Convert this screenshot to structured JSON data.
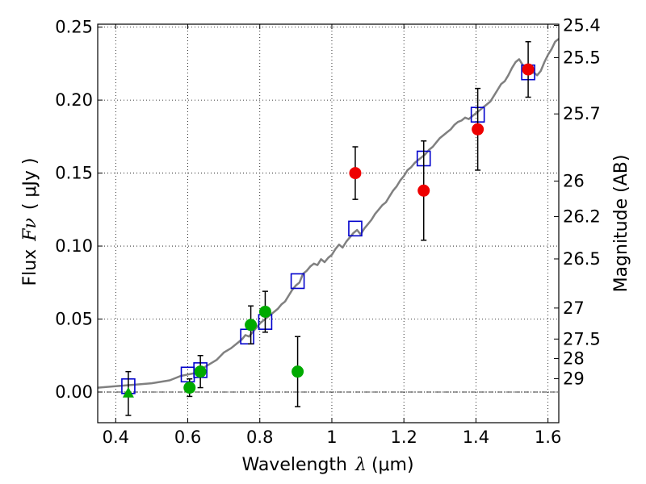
{
  "chart_data": {
    "type": "scatter",
    "xlabel_prefix": "Wavelength",
    "xlabel_symbol": "λ",
    "xlabel_unit": "(μm)",
    "ylabel_prefix": "Flux",
    "ylabel_symbol": "Fν",
    "ylabel_unit": "( μJy )",
    "y2label": "Magnitude (AB)",
    "xlim": [
      0.35,
      1.63
    ],
    "ylim": [
      -0.021,
      0.252
    ],
    "grid": true,
    "x_ticks": [
      {
        "v": 0.4,
        "label": "0.4"
      },
      {
        "v": 0.6,
        "label": "0.6"
      },
      {
        "v": 0.8,
        "label": "0.8"
      },
      {
        "v": 1.0,
        "label": "1"
      },
      {
        "v": 1.2,
        "label": "1.2"
      },
      {
        "v": 1.4,
        "label": "1.4"
      },
      {
        "v": 1.6,
        "label": "1.6"
      }
    ],
    "y_ticks": [
      {
        "v": 0.0,
        "label": "0.00"
      },
      {
        "v": 0.05,
        "label": "0.05"
      },
      {
        "v": 0.1,
        "label": "0.10"
      },
      {
        "v": 0.15,
        "label": "0.15"
      },
      {
        "v": 0.2,
        "label": "0.20"
      },
      {
        "v": 0.25,
        "label": "0.25"
      }
    ],
    "mag_ticks": [
      {
        "mag": 25.4,
        "label": "25.4"
      },
      {
        "mag": 25.5,
        "label": "25.5"
      },
      {
        "mag": 25.7,
        "label": "25.7"
      },
      {
        "mag": 26,
        "label": "26"
      },
      {
        "mag": 26.2,
        "label": "26.2"
      },
      {
        "mag": 26.5,
        "label": "26.5"
      },
      {
        "mag": 27,
        "label": "27"
      },
      {
        "mag": 27.5,
        "label": "27.5"
      },
      {
        "mag": 28,
        "label": "28"
      },
      {
        "mag": 29,
        "label": "29"
      }
    ],
    "series": [
      {
        "kind": "template-spectrum",
        "color": "#808080",
        "points": [
          [
            0.35,
            0.003
          ],
          [
            0.4,
            0.004
          ],
          [
            0.45,
            0.005
          ],
          [
            0.5,
            0.006
          ],
          [
            0.55,
            0.008
          ],
          [
            0.58,
            0.011
          ],
          [
            0.6,
            0.012
          ],
          [
            0.62,
            0.013
          ],
          [
            0.64,
            0.016
          ],
          [
            0.66,
            0.019
          ],
          [
            0.68,
            0.022
          ],
          [
            0.7,
            0.027
          ],
          [
            0.72,
            0.03
          ],
          [
            0.74,
            0.034
          ],
          [
            0.75,
            0.036
          ],
          [
            0.76,
            0.039
          ],
          [
            0.77,
            0.038
          ],
          [
            0.78,
            0.041
          ],
          [
            0.79,
            0.044
          ],
          [
            0.8,
            0.047
          ],
          [
            0.81,
            0.049
          ],
          [
            0.82,
            0.051
          ],
          [
            0.83,
            0.053
          ],
          [
            0.84,
            0.055
          ],
          [
            0.85,
            0.057
          ],
          [
            0.86,
            0.06
          ],
          [
            0.87,
            0.062
          ],
          [
            0.88,
            0.066
          ],
          [
            0.89,
            0.07
          ],
          [
            0.9,
            0.073
          ],
          [
            0.91,
            0.075
          ],
          [
            0.92,
            0.081
          ],
          [
            0.93,
            0.083
          ],
          [
            0.94,
            0.086
          ],
          [
            0.95,
            0.088
          ],
          [
            0.96,
            0.087
          ],
          [
            0.97,
            0.091
          ],
          [
            0.98,
            0.089
          ],
          [
            0.99,
            0.092
          ],
          [
            1.0,
            0.094
          ],
          [
            1.01,
            0.098
          ],
          [
            1.02,
            0.101
          ],
          [
            1.03,
            0.099
          ],
          [
            1.04,
            0.103
          ],
          [
            1.05,
            0.106
          ],
          [
            1.06,
            0.109
          ],
          [
            1.07,
            0.111
          ],
          [
            1.08,
            0.108
          ],
          [
            1.09,
            0.112
          ],
          [
            1.1,
            0.115
          ],
          [
            1.11,
            0.118
          ],
          [
            1.12,
            0.122
          ],
          [
            1.13,
            0.125
          ],
          [
            1.14,
            0.128
          ],
          [
            1.15,
            0.13
          ],
          [
            1.16,
            0.134
          ],
          [
            1.17,
            0.138
          ],
          [
            1.18,
            0.141
          ],
          [
            1.19,
            0.145
          ],
          [
            1.2,
            0.148
          ],
          [
            1.21,
            0.152
          ],
          [
            1.22,
            0.154
          ],
          [
            1.23,
            0.157
          ],
          [
            1.24,
            0.159
          ],
          [
            1.25,
            0.161
          ],
          [
            1.26,
            0.163
          ],
          [
            1.27,
            0.166
          ],
          [
            1.28,
            0.168
          ],
          [
            1.29,
            0.171
          ],
          [
            1.3,
            0.174
          ],
          [
            1.31,
            0.176
          ],
          [
            1.32,
            0.178
          ],
          [
            1.33,
            0.18
          ],
          [
            1.34,
            0.183
          ],
          [
            1.35,
            0.185
          ],
          [
            1.36,
            0.186
          ],
          [
            1.37,
            0.188
          ],
          [
            1.38,
            0.187
          ],
          [
            1.39,
            0.189
          ],
          [
            1.4,
            0.191
          ],
          [
            1.41,
            0.193
          ],
          [
            1.42,
            0.195
          ],
          [
            1.43,
            0.197
          ],
          [
            1.44,
            0.199
          ],
          [
            1.45,
            0.203
          ],
          [
            1.46,
            0.207
          ],
          [
            1.47,
            0.211
          ],
          [
            1.48,
            0.213
          ],
          [
            1.49,
            0.217
          ],
          [
            1.5,
            0.222
          ],
          [
            1.51,
            0.226
          ],
          [
            1.52,
            0.228
          ],
          [
            1.53,
            0.224
          ],
          [
            1.54,
            0.22
          ],
          [
            1.55,
            0.218
          ],
          [
            1.56,
            0.219
          ],
          [
            1.57,
            0.217
          ],
          [
            1.58,
            0.22
          ],
          [
            1.59,
            0.226
          ],
          [
            1.6,
            0.231
          ],
          [
            1.61,
            0.235
          ],
          [
            1.62,
            0.24
          ],
          [
            1.63,
            0.242
          ]
        ]
      },
      {
        "kind": "model-photometry",
        "marker": "square",
        "color": "#0000cc",
        "points": [
          [
            0.435,
            0.004
          ],
          [
            0.6,
            0.012
          ],
          [
            0.635,
            0.015
          ],
          [
            0.765,
            0.038
          ],
          [
            0.815,
            0.048
          ],
          [
            0.905,
            0.076
          ],
          [
            1.065,
            0.112
          ],
          [
            1.255,
            0.16
          ],
          [
            1.405,
            0.19
          ],
          [
            1.545,
            0.219
          ]
        ]
      },
      {
        "kind": "observed-optical",
        "marker": "circle",
        "color": "#00aa00",
        "points": [
          {
            "x": 0.605,
            "y": 0.003,
            "err": 0.006
          },
          {
            "x": 0.635,
            "y": 0.014,
            "err": 0.011
          },
          {
            "x": 0.775,
            "y": 0.046,
            "err": 0.013
          },
          {
            "x": 0.815,
            "y": 0.055,
            "err": 0.014
          },
          {
            "x": 0.905,
            "y": 0.014,
            "err": 0.024
          }
        ]
      },
      {
        "kind": "observed-optical-upper",
        "marker": "triangle",
        "color": "#00aa00",
        "points": [
          {
            "x": 0.435,
            "y": -0.001,
            "err": 0.015
          }
        ]
      },
      {
        "kind": "observed-nir",
        "marker": "circle",
        "color": "#ee0000",
        "points": [
          {
            "x": 1.065,
            "y": 0.15,
            "err": 0.018
          },
          {
            "x": 1.255,
            "y": 0.138,
            "err": 0.034
          },
          {
            "x": 1.405,
            "y": 0.18,
            "err": 0.028
          },
          {
            "x": 1.545,
            "y": 0.221,
            "err": 0.019
          }
        ]
      }
    ]
  }
}
